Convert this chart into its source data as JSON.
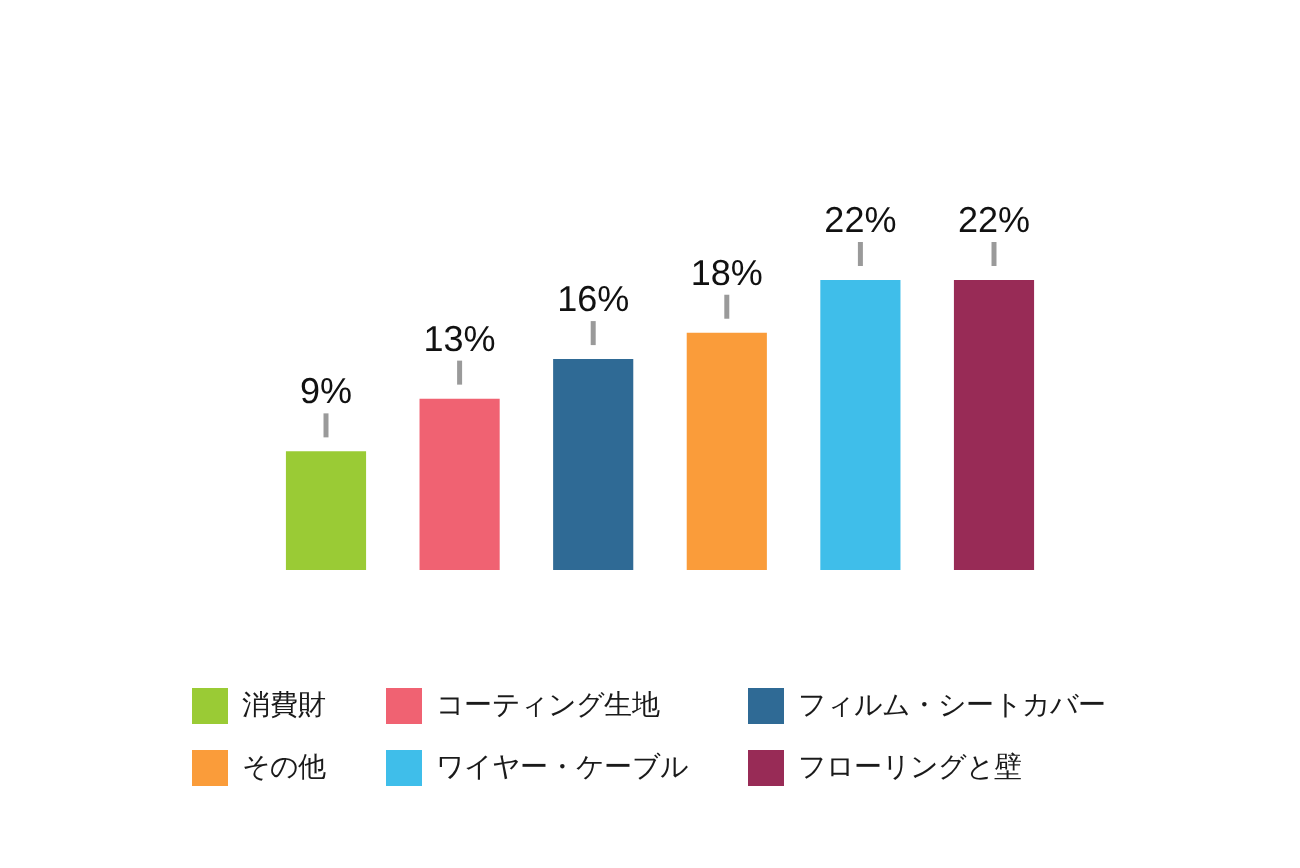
{
  "chart_data": {
    "type": "bar",
    "stacked": true,
    "categories": [
      null,
      null,
      null,
      null,
      null,
      null
    ],
    "series": [
      {
        "name": "消費財",
        "color": "#9acb35",
        "values": [
          9,
          null,
          null,
          null,
          null,
          null
        ],
        "value_labels": [
          "9%",
          null,
          null,
          null,
          null,
          null
        ]
      },
      {
        "name": "コーティング生地",
        "color": "#f06272",
        "values": [
          null,
          13,
          null,
          null,
          null,
          null
        ],
        "value_labels": [
          null,
          "13%",
          null,
          null,
          null,
          null
        ]
      },
      {
        "name": "フィルム・シートカバー",
        "color": "#2f6a95",
        "values": [
          null,
          null,
          16,
          null,
          null,
          null
        ],
        "value_labels": [
          null,
          null,
          "16%",
          null,
          null,
          null
        ]
      },
      {
        "name": "その他",
        "color": "#fa9c3a",
        "values": [
          null,
          null,
          null,
          18,
          null,
          null
        ],
        "value_labels": [
          null,
          null,
          null,
          "18%",
          null,
          null
        ]
      },
      {
        "name": "ワイヤー・ケーブル",
        "color": "#3fbeea",
        "values": [
          null,
          null,
          null,
          null,
          22,
          null
        ],
        "value_labels": [
          null,
          null,
          null,
          null,
          "22%",
          null
        ]
      },
      {
        "name": "フローリングと壁",
        "color": "#982b56",
        "values": [
          null,
          null,
          null,
          null,
          null,
          22
        ],
        "value_labels": [
          null,
          null,
          null,
          null,
          null,
          "22%"
        ]
      }
    ],
    "legend": "bottom",
    "tick_labels": false
  }
}
